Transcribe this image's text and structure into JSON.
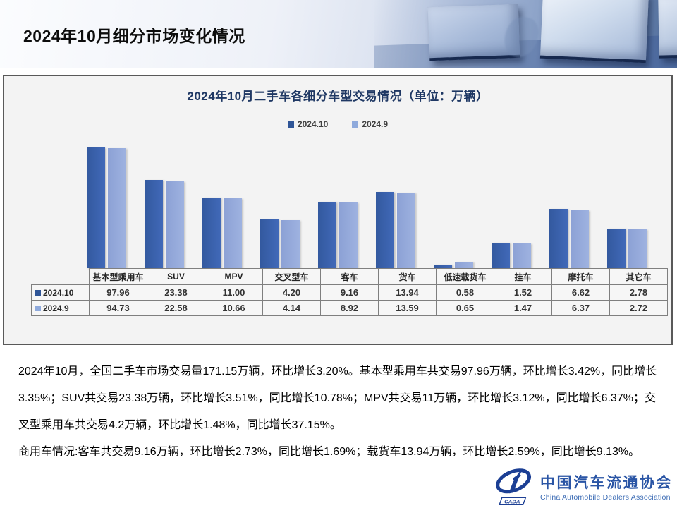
{
  "header": {
    "title": "2024年10月细分市场变化情况"
  },
  "chart_data": {
    "type": "bar",
    "title": "2024年10月二手车各细分车型交易情况（单位：万辆）",
    "categories": [
      "基本型乘用车",
      "SUV",
      "MPV",
      "交叉型车",
      "客车",
      "货车",
      "低速载货车",
      "挂车",
      "摩托车",
      "其它车"
    ],
    "series": [
      {
        "name": "2024.10",
        "values": [
          97.96,
          23.38,
          11.0,
          4.2,
          9.16,
          13.94,
          0.58,
          1.52,
          6.62,
          2.78
        ]
      },
      {
        "name": "2024.9",
        "values": [
          94.73,
          22.58,
          10.66,
          4.14,
          8.92,
          13.59,
          0.65,
          1.47,
          6.37,
          2.72
        ]
      }
    ],
    "ylabel": "",
    "xlabel": "",
    "axis": {
      "scale": "log",
      "min": 0.5,
      "max": 98
    },
    "grid": false,
    "legend_position": "top",
    "data_table_shown": true,
    "value_format": "0.00"
  },
  "colors": {
    "series_dark": "#2F5597",
    "series_light": "#8FAADC",
    "chart_title": "#1F3864",
    "logo_blue": "#1C3F94"
  },
  "body": {
    "paragraph1": "2024年10月，全国二手车市场交易量171.15万辆，环比增长3.20%。基本型乘用车共交易97.96万辆，环比增长3.42%，同比增长3.35%；SUV共交易23.38万辆，环比增长3.51%，同比增长10.78%；MPV共交易11万辆，环比增长3.12%，同比增长6.37%；交叉型乘用车共交易4.2万辆，环比增长1.48%，同比增长37.15%。",
    "paragraph2": "商用车情况:客车共交易9.16万辆，环比增长2.73%，同比增长1.69%；载货车13.94万辆，环比增长2.59%，同比增长9.13%。"
  },
  "logo": {
    "acronym": "CADA",
    "name_cn": "中国汽车流通协会",
    "name_en": "China Automobile Dealers Association"
  }
}
